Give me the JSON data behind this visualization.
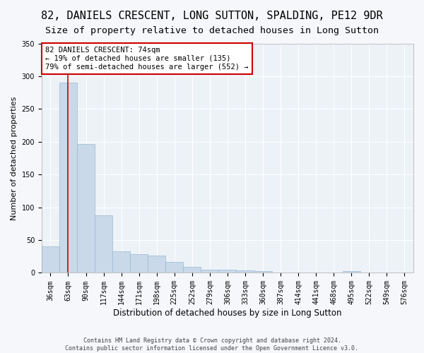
{
  "title": "82, DANIELS CRESCENT, LONG SUTTON, SPALDING, PE12 9DR",
  "subtitle": "Size of property relative to detached houses in Long Sutton",
  "xlabel": "Distribution of detached houses by size in Long Sutton",
  "ylabel": "Number of detached properties",
  "footer_line1": "Contains HM Land Registry data © Crown copyright and database right 2024.",
  "footer_line2": "Contains public sector information licensed under the Open Government Licence v3.0.",
  "bins": [
    "36sqm",
    "63sqm",
    "90sqm",
    "117sqm",
    "144sqm",
    "171sqm",
    "198sqm",
    "225sqm",
    "252sqm",
    "279sqm",
    "306sqm",
    "333sqm",
    "360sqm",
    "387sqm",
    "414sqm",
    "441sqm",
    "468sqm",
    "495sqm",
    "522sqm",
    "549sqm",
    "576sqm"
  ],
  "bar_values": [
    40,
    290,
    197,
    88,
    33,
    28,
    26,
    17,
    9,
    5,
    5,
    4,
    3,
    0,
    0,
    0,
    0,
    3,
    0,
    0,
    0
  ],
  "bar_color": "#c9d9ea",
  "bar_edge_color": "#9ab8d0",
  "vline_x": 1.0,
  "vline_color": "#cc0000",
  "annotation_text": "82 DANIELS CRESCENT: 74sqm\n← 19% of detached houses are smaller (135)\n79% of semi-detached houses are larger (552) →",
  "annotation_box_color": "#ffffff",
  "annotation_box_edge": "#cc0000",
  "ylim": [
    0,
    350
  ],
  "yticks": [
    0,
    50,
    100,
    150,
    200,
    250,
    300,
    350
  ],
  "bg_color": "#edf2f7",
  "grid_color": "#ffffff",
  "title_fontsize": 11,
  "subtitle_fontsize": 9.5,
  "xlabel_fontsize": 8.5,
  "ylabel_fontsize": 8,
  "tick_fontsize": 7,
  "footer_fontsize": 6,
  "fig_bg": "#f5f7fa"
}
